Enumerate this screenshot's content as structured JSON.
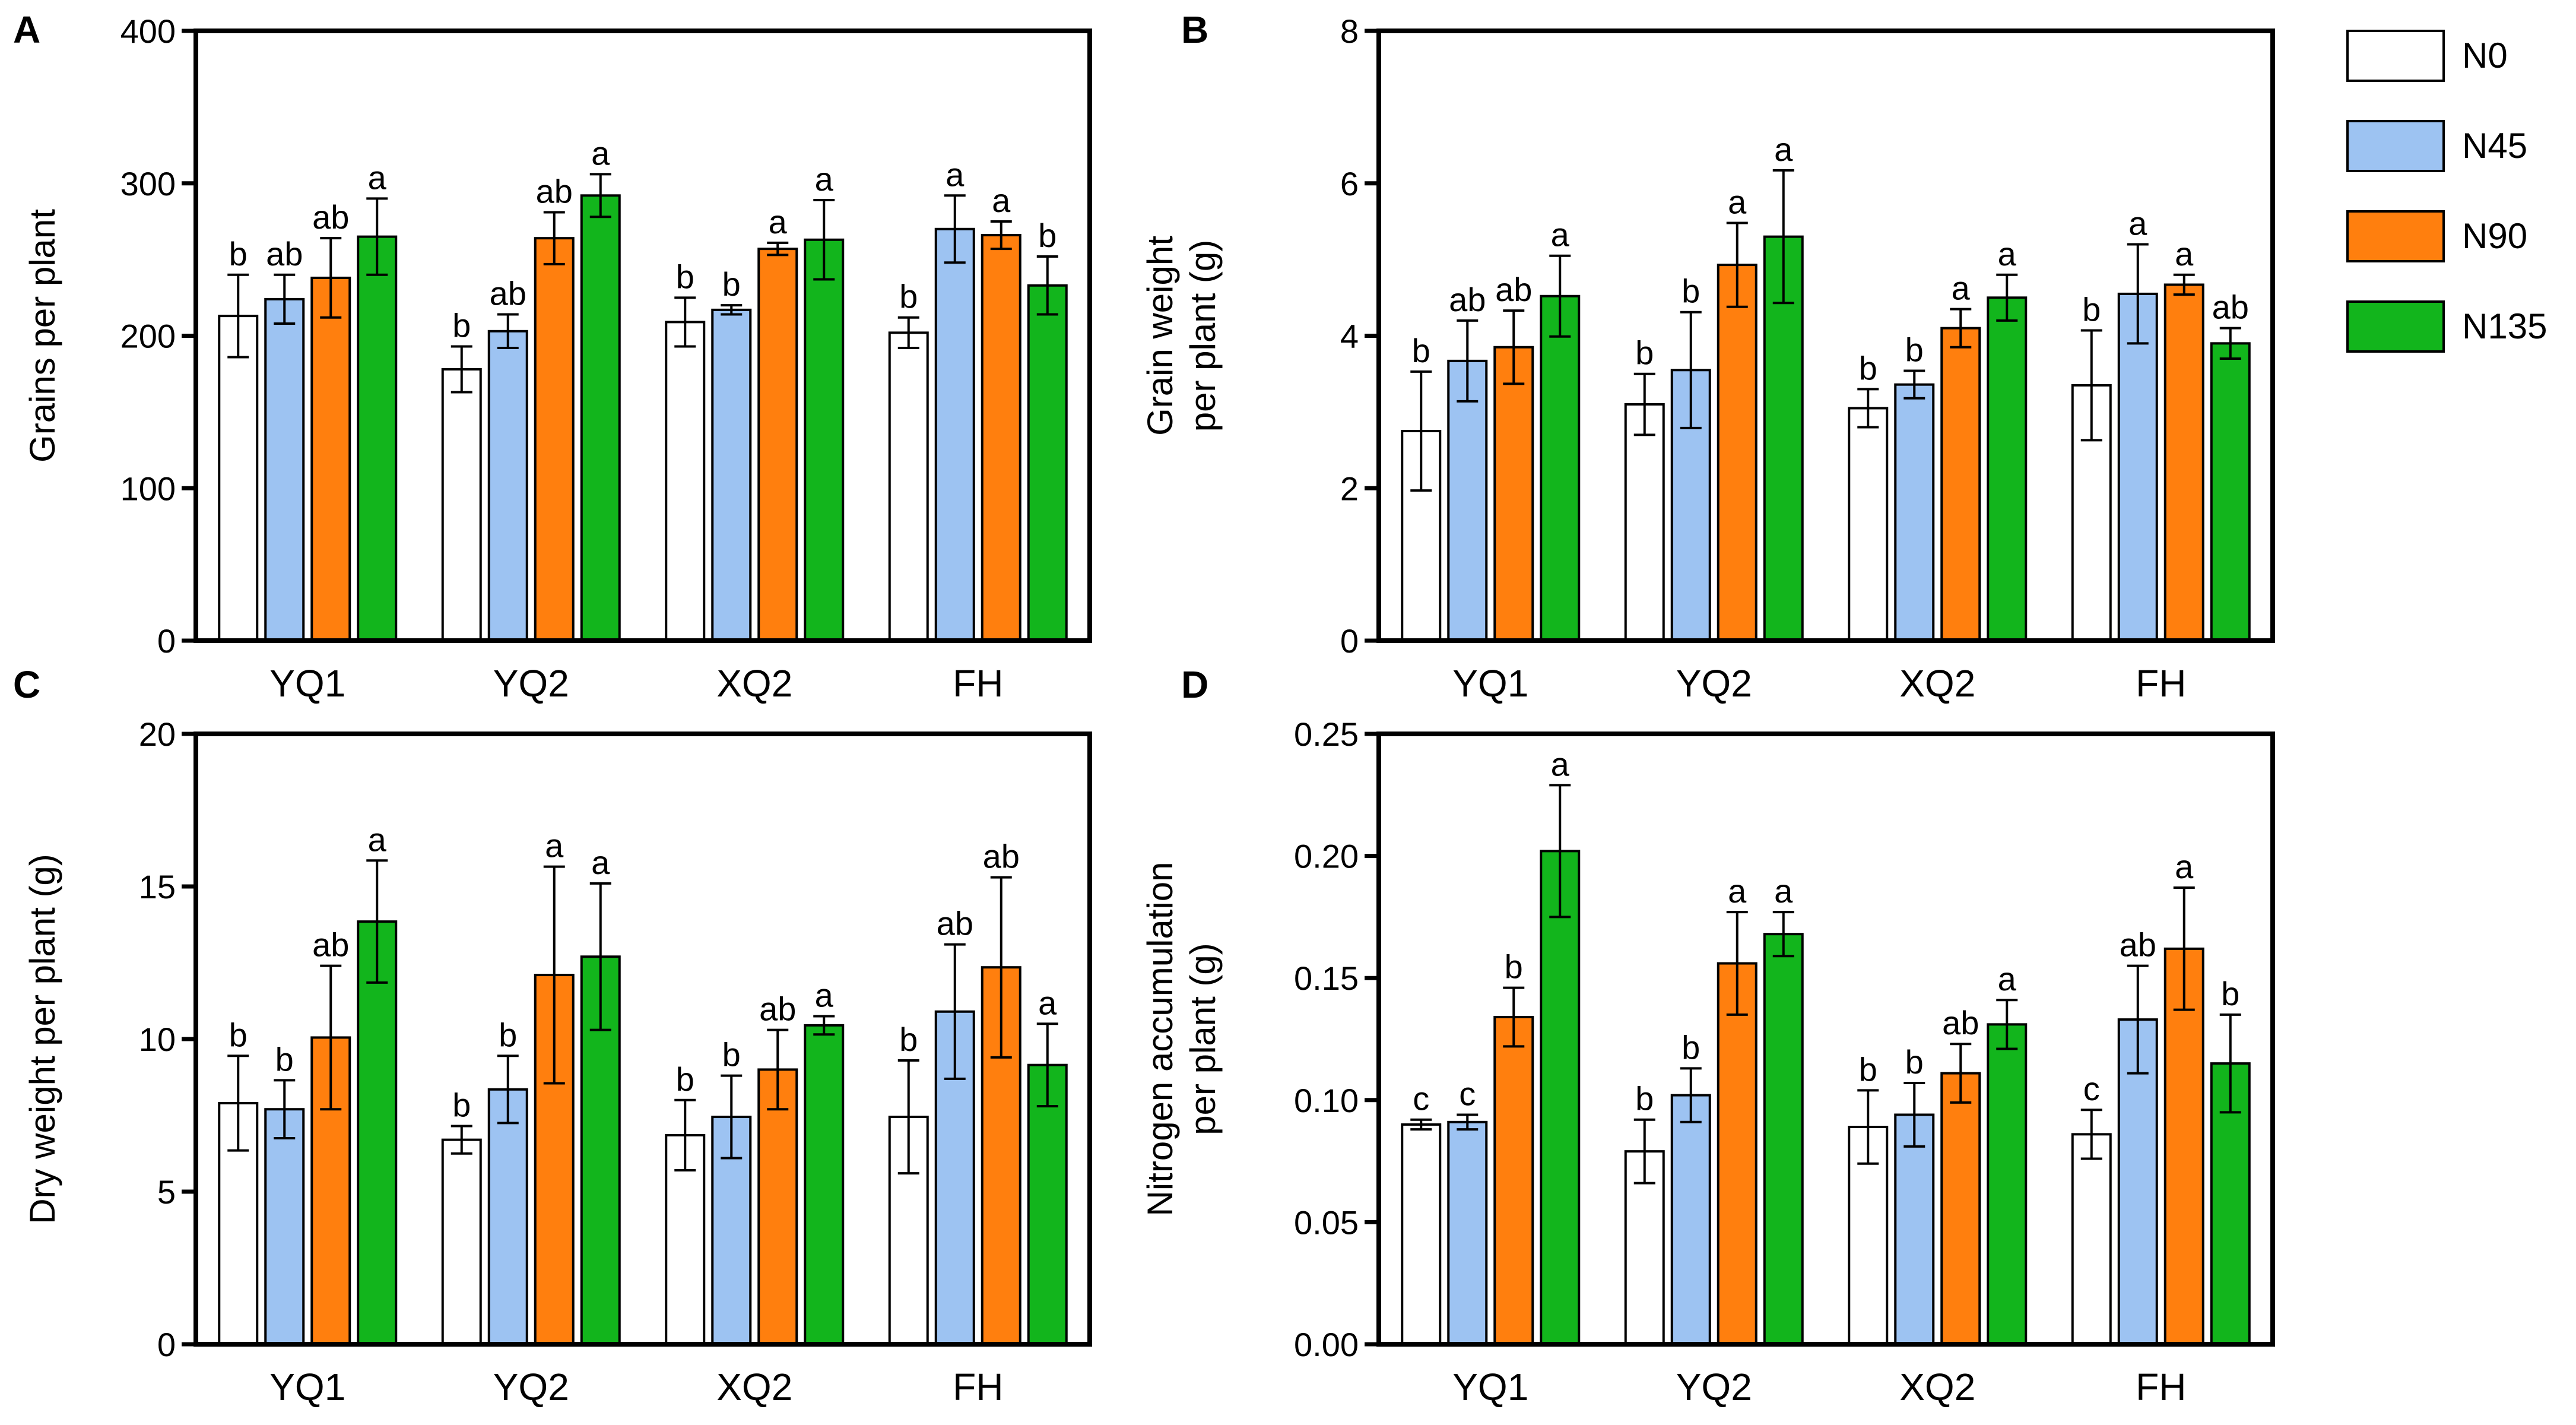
{
  "legend": {
    "items": [
      {
        "name": "N0",
        "color": "#ffffff"
      },
      {
        "name": "N45",
        "color": "#9dc3f2"
      },
      {
        "name": "N90",
        "color": "#ff7f0e"
      },
      {
        "name": "N135",
        "color": "#12b51c"
      }
    ]
  },
  "chart_data": [
    {
      "panel": "A",
      "type": "bar",
      "title": "",
      "xlabel": "",
      "ylabel": "Grains per plant",
      "ylim": [
        0,
        400
      ],
      "yticks": [
        0,
        100,
        200,
        300,
        400
      ],
      "ytick_labels": [
        "0",
        "100",
        "200",
        "300",
        "400"
      ],
      "categories": [
        "YQ1",
        "YQ2",
        "XQ2",
        "FH"
      ],
      "series": [
        {
          "name": "N0",
          "values": [
            213,
            178,
            209,
            202
          ],
          "errors": [
            27,
            15,
            16,
            10
          ],
          "sig": [
            "b",
            "b",
            "b",
            "b"
          ]
        },
        {
          "name": "N45",
          "values": [
            224,
            203,
            217,
            270
          ],
          "errors": [
            16,
            11,
            3,
            22
          ],
          "sig": [
            "ab",
            "ab",
            "b",
            "a"
          ]
        },
        {
          "name": "N90",
          "values": [
            238,
            264,
            257,
            266
          ],
          "errors": [
            26,
            17,
            4,
            9
          ],
          "sig": [
            "ab",
            "ab",
            "a",
            "a"
          ]
        },
        {
          "name": "N135",
          "values": [
            265,
            292,
            263,
            233
          ],
          "errors": [
            25,
            14,
            26,
            19
          ],
          "sig": [
            "a",
            "a",
            "a",
            "b"
          ]
        }
      ]
    },
    {
      "panel": "B",
      "type": "bar",
      "title": "",
      "xlabel": "",
      "ylabel": "Grain weight per plant (g)",
      "ylabel_lines": [
        "Grain weight",
        "per plant (g)"
      ],
      "ylim": [
        0,
        8
      ],
      "yticks": [
        0,
        2,
        4,
        6,
        8
      ],
      "ytick_labels": [
        "0",
        "2",
        "4",
        "6",
        "8"
      ],
      "categories": [
        "YQ1",
        "YQ2",
        "XQ2",
        "FH"
      ],
      "series": [
        {
          "name": "N0",
          "values": [
            2.75,
            3.1,
            3.05,
            3.35
          ],
          "errors": [
            0.78,
            0.4,
            0.25,
            0.72
          ],
          "sig": [
            "b",
            "b",
            "b",
            "b"
          ]
        },
        {
          "name": "N45",
          "values": [
            3.67,
            3.55,
            3.36,
            4.55
          ],
          "errors": [
            0.53,
            0.76,
            0.18,
            0.65
          ],
          "sig": [
            "ab",
            "b",
            "b",
            "a"
          ]
        },
        {
          "name": "N90",
          "values": [
            3.85,
            4.93,
            4.1,
            4.67
          ],
          "errors": [
            0.48,
            0.55,
            0.25,
            0.13
          ],
          "sig": [
            "ab",
            "a",
            "a",
            "a"
          ]
        },
        {
          "name": "N135",
          "values": [
            4.52,
            5.3,
            4.5,
            3.9
          ],
          "errors": [
            0.53,
            0.87,
            0.3,
            0.2
          ],
          "sig": [
            "a",
            "a",
            "a",
            "ab"
          ]
        }
      ]
    },
    {
      "panel": "C",
      "type": "bar",
      "title": "",
      "xlabel": "",
      "ylabel": "Dry weight per plant (g)",
      "ylim": [
        0,
        20
      ],
      "yticks": [
        0,
        5,
        10,
        15,
        20
      ],
      "ytick_labels": [
        "0",
        "5",
        "10",
        "15",
        "20"
      ],
      "categories": [
        "YQ1",
        "YQ2",
        "XQ2",
        "FH"
      ],
      "series": [
        {
          "name": "N0",
          "values": [
            7.9,
            6.7,
            6.85,
            7.45
          ],
          "errors": [
            1.55,
            0.45,
            1.15,
            1.85
          ],
          "sig": [
            "b",
            "b",
            "b",
            "b"
          ]
        },
        {
          "name": "N45",
          "values": [
            7.7,
            8.35,
            7.45,
            10.9
          ],
          "errors": [
            0.95,
            1.1,
            1.35,
            2.2
          ],
          "sig": [
            "b",
            "b",
            "b",
            "ab"
          ]
        },
        {
          "name": "N90",
          "values": [
            10.05,
            12.1,
            9.0,
            12.35
          ],
          "errors": [
            2.35,
            3.55,
            1.3,
            2.95
          ],
          "sig": [
            "ab",
            "a",
            "ab",
            "ab"
          ]
        },
        {
          "name": "N135",
          "values": [
            13.85,
            12.7,
            10.45,
            9.15
          ],
          "errors": [
            2.0,
            2.4,
            0.3,
            1.35
          ],
          "sig": [
            "a",
            "a",
            "a",
            "a"
          ]
        }
      ]
    },
    {
      "panel": "D",
      "type": "bar",
      "title": "",
      "xlabel": "",
      "ylabel": "Nitrogen accumulation per plant (g)",
      "ylabel_lines": [
        "Nitrogen accumulation",
        "per plant (g)"
      ],
      "ylim": [
        0,
        0.25
      ],
      "yticks": [
        0,
        0.05,
        0.1,
        0.15,
        0.2,
        0.25
      ],
      "ytick_labels": [
        "0.00",
        "0.05",
        "0.10",
        "0.15",
        "0.20",
        "0.25"
      ],
      "categories": [
        "YQ1",
        "YQ2",
        "XQ2",
        "FH"
      ],
      "series": [
        {
          "name": "N0",
          "values": [
            0.09,
            0.079,
            0.089,
            0.086
          ],
          "errors": [
            0.002,
            0.013,
            0.015,
            0.01
          ],
          "sig": [
            "c",
            "b",
            "b",
            "c"
          ]
        },
        {
          "name": "N45",
          "values": [
            0.091,
            0.102,
            0.094,
            0.133
          ],
          "errors": [
            0.003,
            0.011,
            0.013,
            0.022
          ],
          "sig": [
            "c",
            "b",
            "b",
            "ab"
          ]
        },
        {
          "name": "N90",
          "values": [
            0.134,
            0.156,
            0.111,
            0.162
          ],
          "errors": [
            0.012,
            0.021,
            0.012,
            0.025
          ],
          "sig": [
            "b",
            "a",
            "ab",
            "a"
          ]
        },
        {
          "name": "N135",
          "values": [
            0.202,
            0.168,
            0.131,
            0.115
          ],
          "errors": [
            0.027,
            0.009,
            0.01,
            0.02
          ],
          "sig": [
            "a",
            "a",
            "a",
            "b"
          ]
        }
      ]
    }
  ]
}
